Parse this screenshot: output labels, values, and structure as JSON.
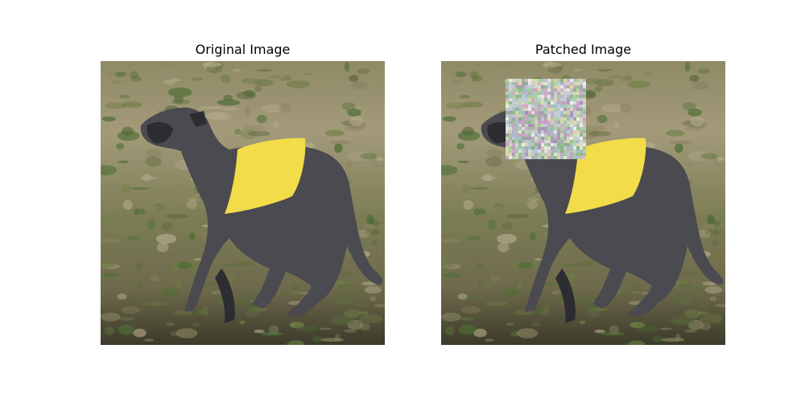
{
  "figure": {
    "panels": [
      {
        "title": "Original Image",
        "patched": false
      },
      {
        "title": "Patched Image",
        "patched": true
      }
    ]
  },
  "colors": {
    "grass_light": "#a39a7a",
    "grass_dark": "#5f6a3e",
    "grass_green": "#4e6e34",
    "dog_fur": "#4a4a50",
    "dog_dark": "#2c2c31",
    "vest_yellow": "#f2dc4a",
    "patch_base": "#cfd8cf"
  }
}
